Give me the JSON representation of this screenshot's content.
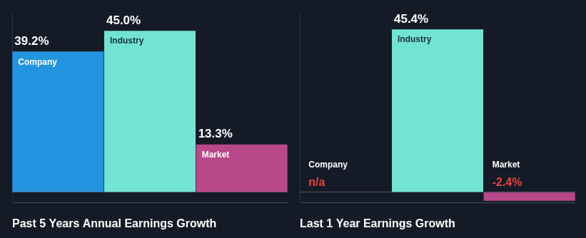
{
  "chart_data": [
    {
      "type": "bar",
      "title": "Past 5 Years Annual Earnings Growth",
      "categories": [
        "Company",
        "Industry",
        "Market"
      ],
      "values": [
        39.2,
        45.0,
        13.3
      ],
      "value_labels": [
        "39.2%",
        "45.0%",
        "13.3%"
      ],
      "colors": [
        "#2394df",
        "#71e4d3",
        "#b9488a"
      ],
      "ylim": [
        -3,
        50
      ],
      "yticks": [
        0
      ],
      "grid": true,
      "data_labels": true,
      "tick_labels": false
    },
    {
      "type": "bar",
      "title": "Last 1 Year Earnings Growth",
      "categories": [
        "Company",
        "Industry",
        "Market"
      ],
      "values": [
        null,
        45.4,
        -2.4
      ],
      "value_labels": [
        "n/a",
        "45.4%",
        "-2.4%"
      ],
      "colors": [
        "#2394df",
        "#71e4d3",
        "#b9488a"
      ],
      "ylim": [
        -3,
        50
      ],
      "yticks": [
        0
      ],
      "grid": true,
      "data_labels": true,
      "tick_labels": false
    }
  ]
}
